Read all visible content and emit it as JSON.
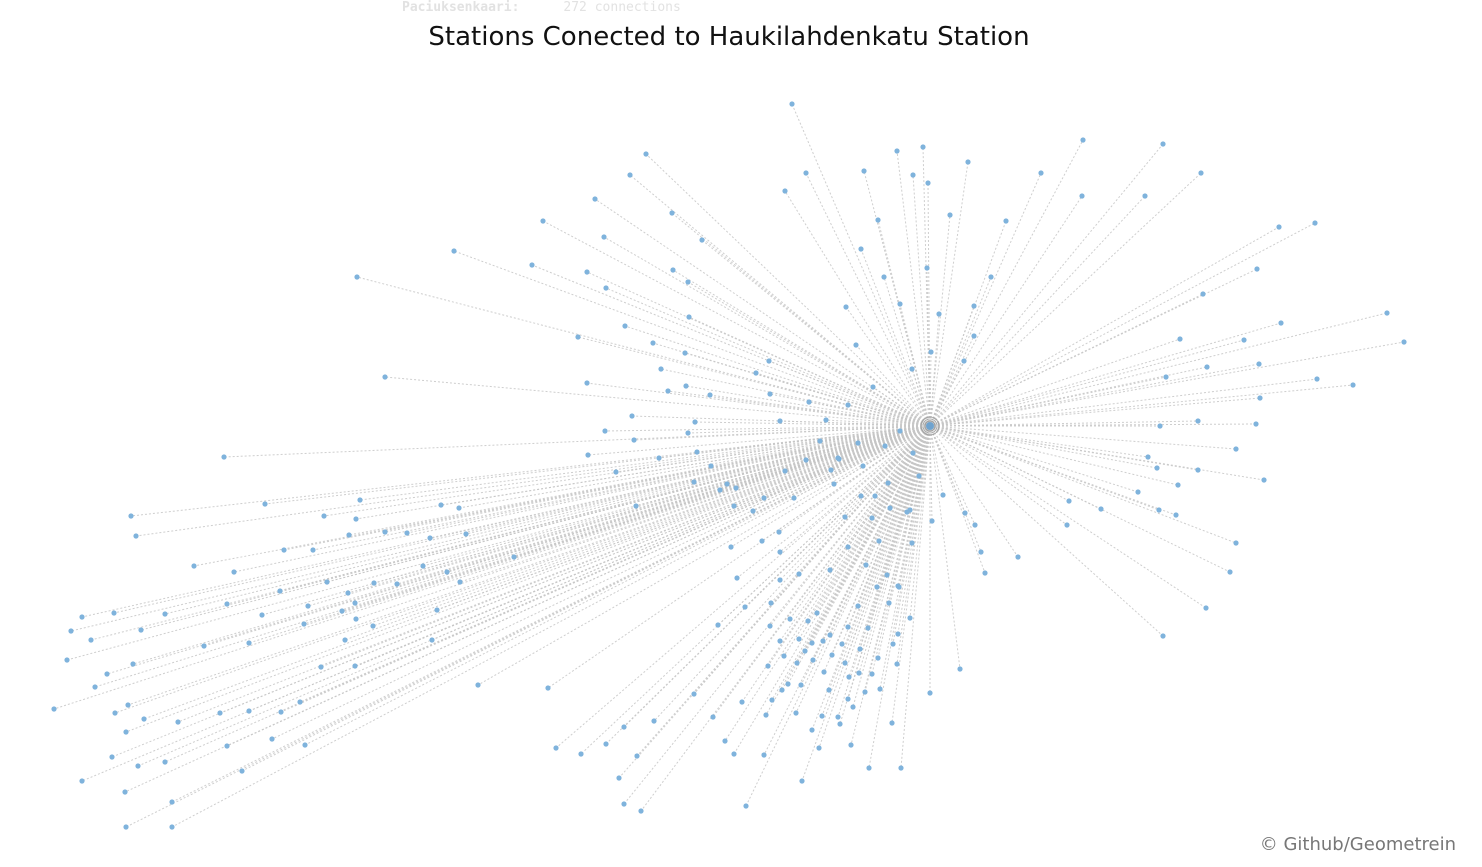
{
  "hover": {
    "station": "Paciuksenkaari:",
    "connections": "272 connections"
  },
  "title": "Stations Conected to Haukilahdenkatu Station",
  "credit": "© Github/Geometrein",
  "colors": {
    "node": "#7fb3dc",
    "edge": "#c6c6c6",
    "hub": "#6fa3cf"
  },
  "network": {
    "hub": "Haukilahdenkatu Station",
    "connected_station_count": 272
  }
}
